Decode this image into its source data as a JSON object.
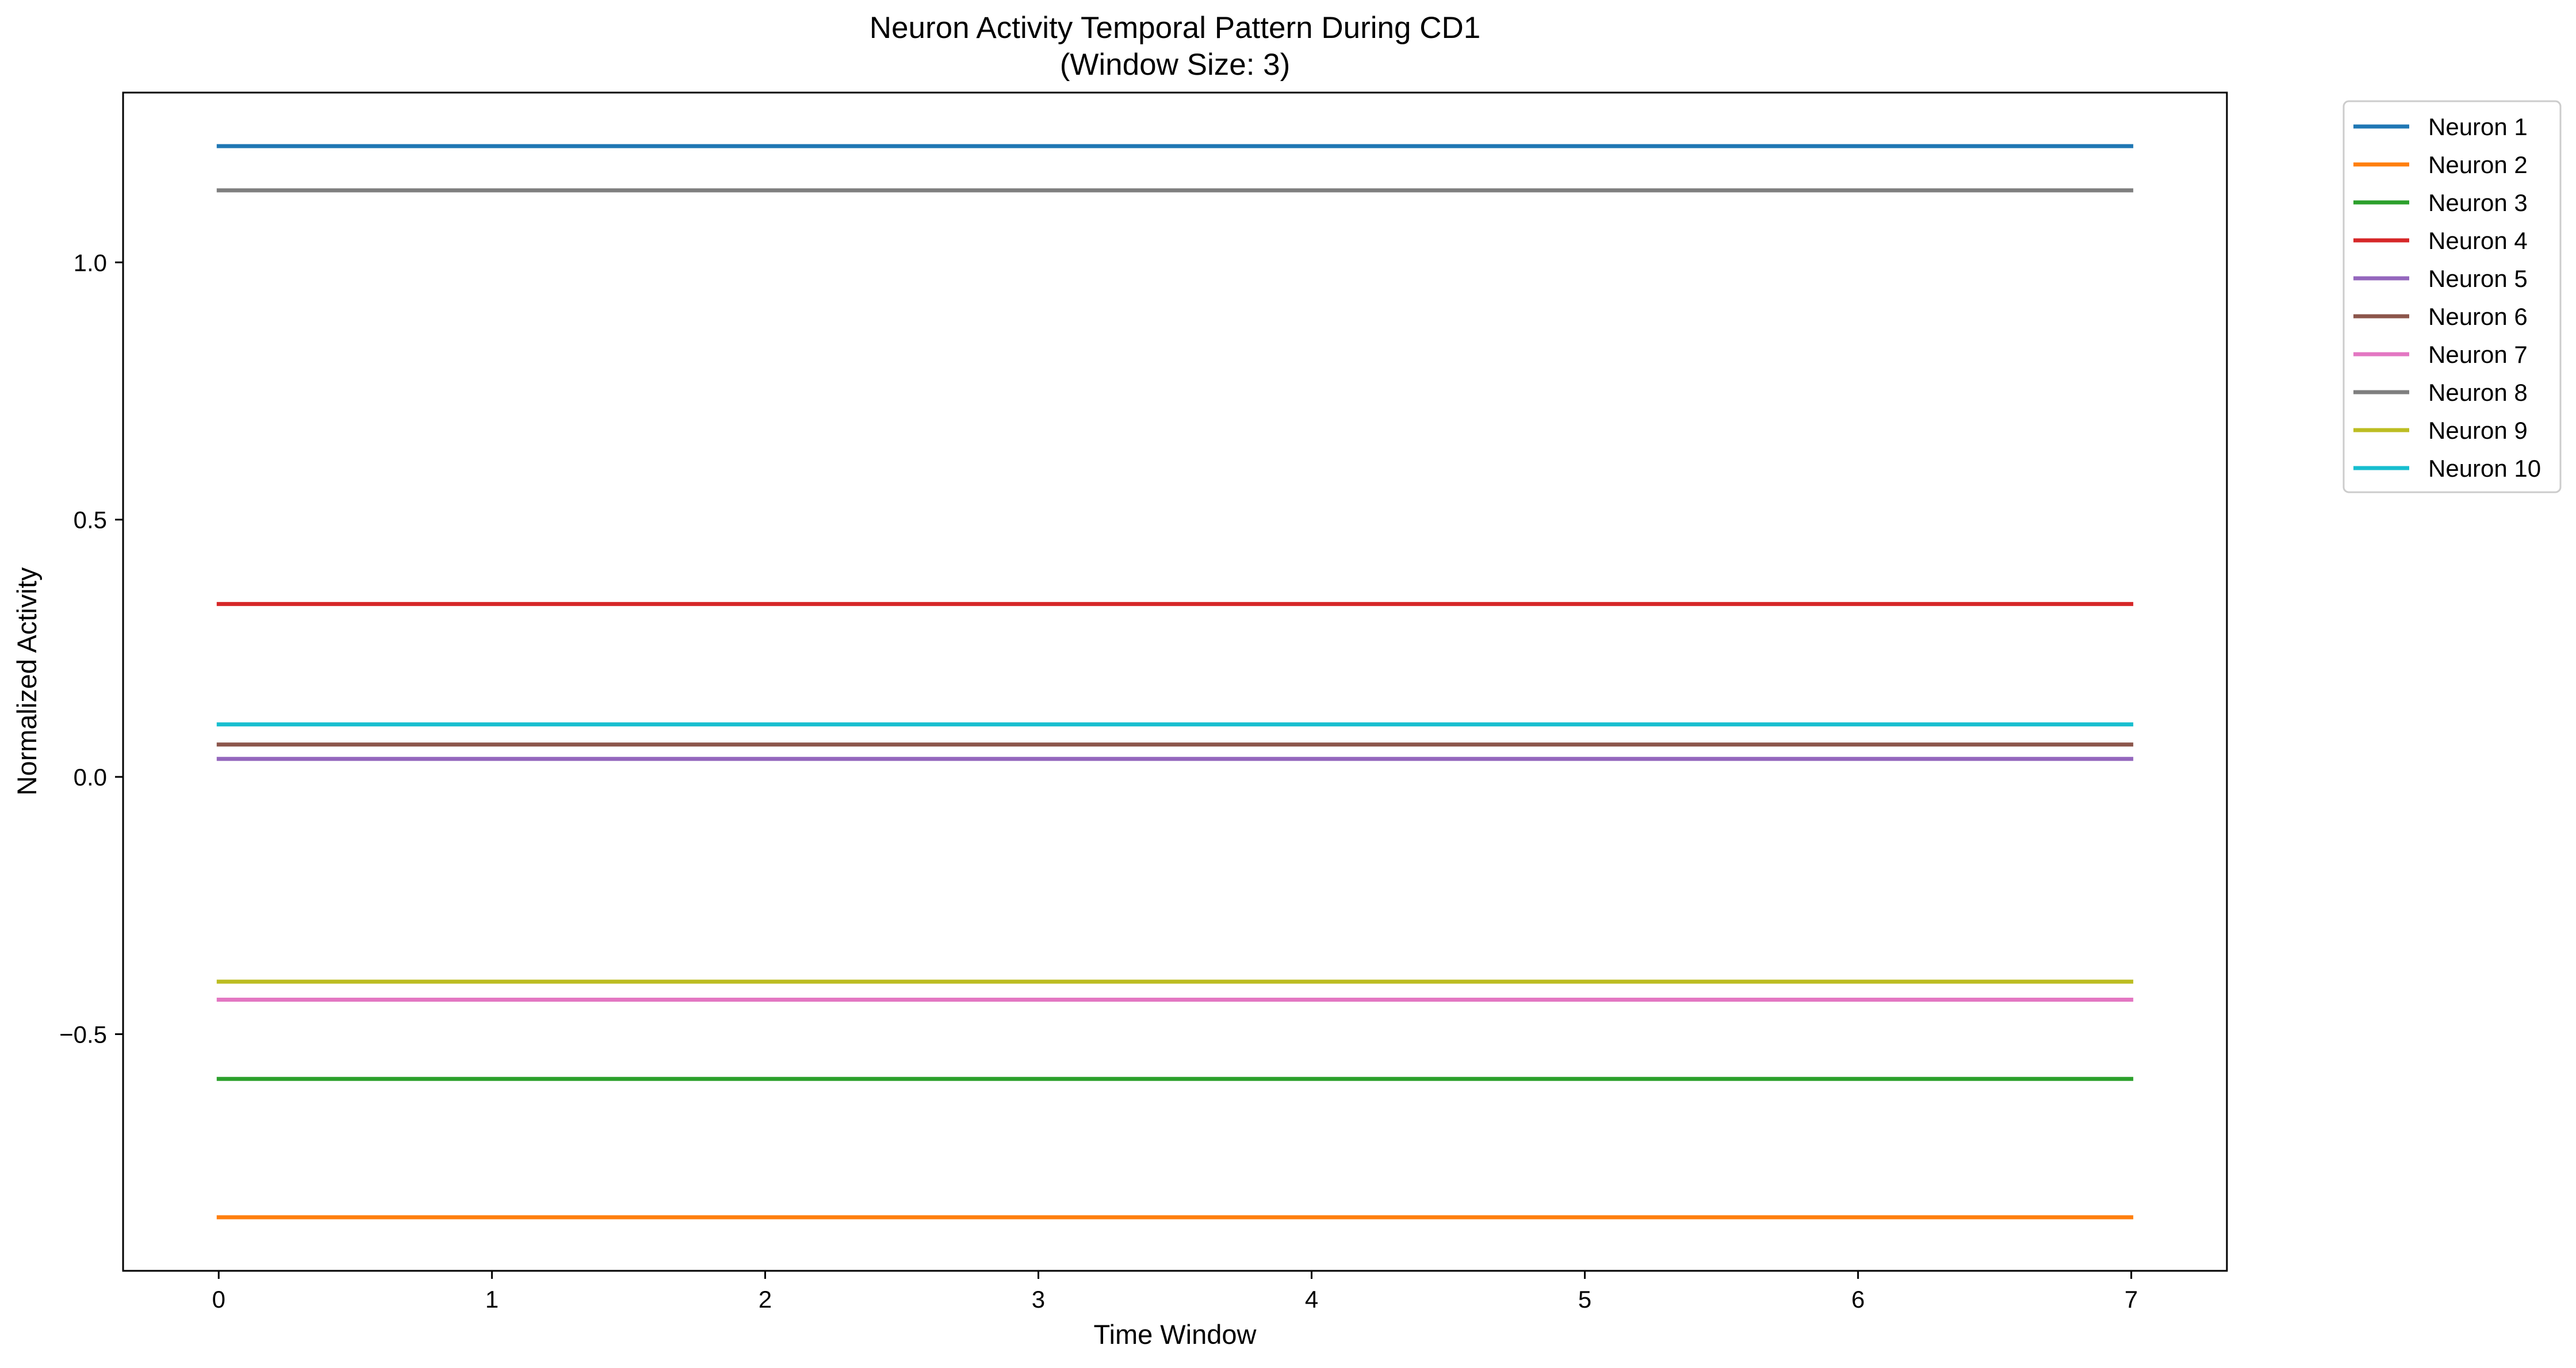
{
  "chart_data": {
    "type": "line",
    "title": "Neuron Activity Temporal Pattern During CD1",
    "subtitle": "(Window Size: 3)",
    "xlabel": "Time Window",
    "ylabel": "Normalized Activity",
    "x": [
      0,
      1,
      2,
      3,
      4,
      5,
      6,
      7
    ],
    "xlim": [
      -0.35,
      7.35
    ],
    "ylim": [
      -0.96,
      1.33
    ],
    "xticks": [
      0,
      1,
      2,
      3,
      4,
      5,
      6,
      7
    ],
    "xtick_labels": [
      "0",
      "1",
      "2",
      "3",
      "4",
      "5",
      "6",
      "7"
    ],
    "yticks": [
      -0.5,
      0.0,
      0.5,
      1.0
    ],
    "ytick_labels": [
      "−0.5",
      "0.0",
      "0.5",
      "1.0"
    ],
    "grid": false,
    "legend_position": "outside-top-right",
    "series": [
      {
        "name": "Neuron 1",
        "color": "#1f77b4",
        "values": [
          1.226,
          1.226,
          1.226,
          1.226,
          1.226,
          1.226,
          1.226,
          1.226
        ]
      },
      {
        "name": "Neuron 2",
        "color": "#ff7f0e",
        "values": [
          -0.856,
          -0.856,
          -0.856,
          -0.856,
          -0.856,
          -0.856,
          -0.856,
          -0.856
        ]
      },
      {
        "name": "Neuron 3",
        "color": "#2ca02c",
        "values": [
          -0.587,
          -0.587,
          -0.587,
          -0.587,
          -0.587,
          -0.587,
          -0.587,
          -0.587
        ]
      },
      {
        "name": "Neuron 4",
        "color": "#d62728",
        "values": [
          0.336,
          0.336,
          0.336,
          0.336,
          0.336,
          0.336,
          0.336,
          0.336
        ]
      },
      {
        "name": "Neuron 5",
        "color": "#9467bd",
        "values": [
          0.035,
          0.035,
          0.035,
          0.035,
          0.035,
          0.035,
          0.035,
          0.035
        ]
      },
      {
        "name": "Neuron 6",
        "color": "#8c564b",
        "values": [
          0.063,
          0.063,
          0.063,
          0.063,
          0.063,
          0.063,
          0.063,
          0.063
        ]
      },
      {
        "name": "Neuron 7",
        "color": "#e377c2",
        "values": [
          -0.433,
          -0.433,
          -0.433,
          -0.433,
          -0.433,
          -0.433,
          -0.433,
          -0.433
        ]
      },
      {
        "name": "Neuron 8",
        "color": "#7f7f7f",
        "values": [
          1.14,
          1.14,
          1.14,
          1.14,
          1.14,
          1.14,
          1.14,
          1.14
        ]
      },
      {
        "name": "Neuron 9",
        "color": "#bcbd22",
        "values": [
          -0.398,
          -0.398,
          -0.398,
          -0.398,
          -0.398,
          -0.398,
          -0.398,
          -0.398
        ]
      },
      {
        "name": "Neuron 10",
        "color": "#17becf",
        "values": [
          0.102,
          0.102,
          0.102,
          0.102,
          0.102,
          0.102,
          0.102,
          0.102
        ]
      }
    ]
  }
}
